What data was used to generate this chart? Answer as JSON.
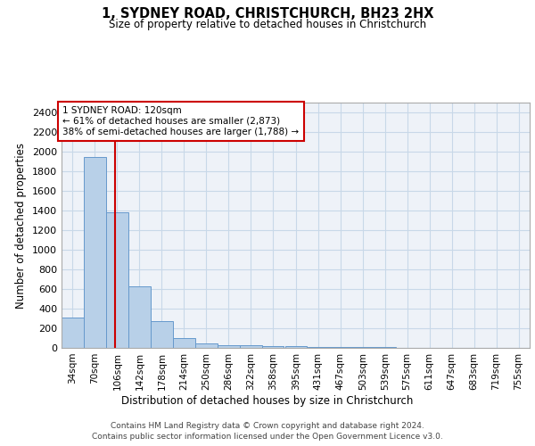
{
  "title": "1, SYDNEY ROAD, CHRISTCHURCH, BH23 2HX",
  "subtitle": "Size of property relative to detached houses in Christchurch",
  "xlabel": "Distribution of detached houses by size in Christchurch",
  "ylabel": "Number of detached properties",
  "footer_line1": "Contains HM Land Registry data © Crown copyright and database right 2024.",
  "footer_line2": "Contains public sector information licensed under the Open Government Licence v3.0.",
  "bin_labels": [
    "34sqm",
    "70sqm",
    "106sqm",
    "142sqm",
    "178sqm",
    "214sqm",
    "250sqm",
    "286sqm",
    "322sqm",
    "358sqm",
    "395sqm",
    "431sqm",
    "467sqm",
    "503sqm",
    "539sqm",
    "575sqm",
    "611sqm",
    "647sqm",
    "683sqm",
    "719sqm",
    "755sqm"
  ],
  "bin_edges": [
    34,
    70,
    106,
    142,
    178,
    214,
    250,
    286,
    322,
    358,
    395,
    431,
    467,
    503,
    539,
    575,
    611,
    647,
    683,
    719,
    755
  ],
  "bar_heights": [
    310,
    1950,
    1380,
    630,
    270,
    100,
    50,
    30,
    25,
    20,
    15,
    10,
    8,
    5,
    5,
    3,
    2,
    2,
    1,
    1
  ],
  "bar_color": "#b8d0e8",
  "bar_edge_color": "#6699cc",
  "property_size": 120,
  "red_line_color": "#cc0000",
  "annotation_line1": "1 SYDNEY ROAD: 120sqm",
  "annotation_line2": "← 61% of detached houses are smaller (2,873)",
  "annotation_line3": "38% of semi-detached houses are larger (1,788) →",
  "annotation_box_color": "#cc0000",
  "ylim": [
    0,
    2500
  ],
  "yticks": [
    0,
    200,
    400,
    600,
    800,
    1000,
    1200,
    1400,
    1600,
    1800,
    2000,
    2200,
    2400
  ],
  "grid_color": "#c8d8e8",
  "background_color": "#eef2f8"
}
